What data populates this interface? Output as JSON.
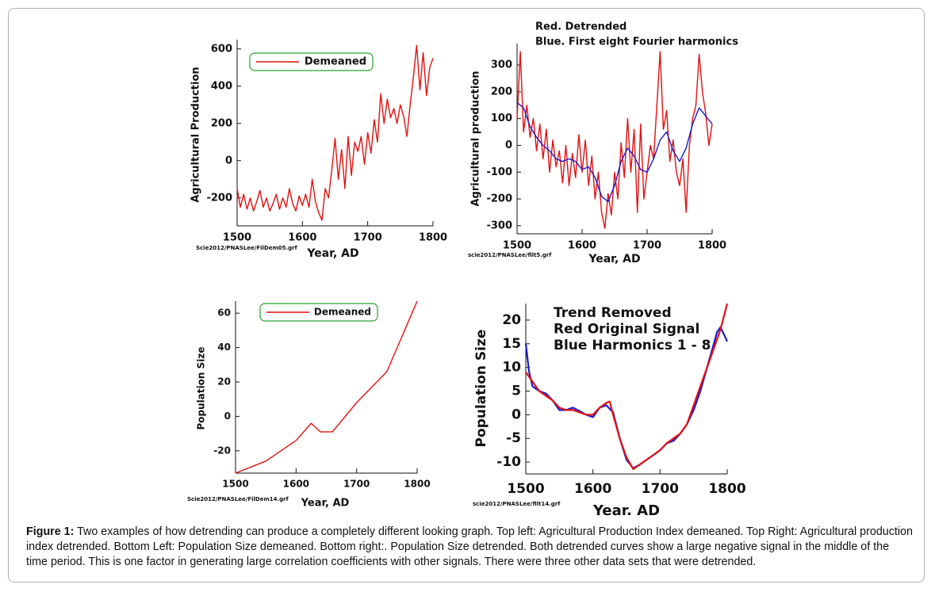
{
  "chart_data": [
    {
      "type": "line",
      "ylabel": "Agricultural Production",
      "xlabel": "Year, AD",
      "source": "Scie2012/PNASLee/FilDem05.grf",
      "xlim": [
        1500,
        1800
      ],
      "xticks": [
        1500,
        1600,
        1700,
        1800
      ],
      "ylim": [
        -350,
        650
      ],
      "yticks": [
        -200,
        0,
        200,
        400,
        600
      ],
      "legend": "top-left",
      "series": [
        {
          "name": "Demeaned",
          "color": "#e41010",
          "x": [
            1500,
            1505,
            1510,
            1515,
            1520,
            1525,
            1530,
            1535,
            1540,
            1545,
            1550,
            1555,
            1560,
            1565,
            1570,
            1575,
            1580,
            1585,
            1590,
            1595,
            1600,
            1605,
            1610,
            1615,
            1620,
            1625,
            1630,
            1635,
            1640,
            1645,
            1650,
            1655,
            1660,
            1665,
            1670,
            1675,
            1680,
            1685,
            1690,
            1695,
            1700,
            1705,
            1710,
            1715,
            1720,
            1725,
            1730,
            1735,
            1740,
            1745,
            1750,
            1755,
            1760,
            1765,
            1770,
            1775,
            1780,
            1785,
            1790,
            1795,
            1800
          ],
          "values": [
            -150,
            -250,
            -180,
            -260,
            -200,
            -270,
            -220,
            -160,
            -250,
            -200,
            -270,
            -230,
            -180,
            -260,
            -200,
            -250,
            -150,
            -230,
            -270,
            -190,
            -240,
            -180,
            -250,
            -100,
            -220,
            -280,
            -320,
            -150,
            -200,
            -50,
            120,
            -100,
            60,
            -150,
            130,
            -80,
            100,
            50,
            130,
            -20,
            150,
            40,
            220,
            100,
            360,
            200,
            330,
            230,
            280,
            200,
            300,
            240,
            130,
            300,
            450,
            620,
            380,
            580,
            350,
            500,
            550
          ]
        }
      ]
    },
    {
      "type": "line",
      "ylabel": "Agricultural production",
      "xlabel": "Year, AD",
      "source": "scie2012/PNASLee/filt5.grf",
      "annotations": [
        "Red. Detrended",
        "Blue. First eight Fourier harmonics"
      ],
      "xlim": [
        1500,
        1800
      ],
      "xticks": [
        1500,
        1600,
        1700,
        1800
      ],
      "ylim": [
        -330,
        380
      ],
      "yticks": [
        -300,
        -200,
        -100,
        0,
        100,
        200,
        300
      ],
      "series": [
        {
          "color": "#e41010",
          "x": [
            1500,
            1505,
            1510,
            1515,
            1520,
            1525,
            1530,
            1535,
            1540,
            1545,
            1550,
            1555,
            1560,
            1565,
            1570,
            1575,
            1580,
            1585,
            1590,
            1595,
            1600,
            1605,
            1610,
            1615,
            1620,
            1625,
            1630,
            1635,
            1640,
            1645,
            1650,
            1655,
            1660,
            1665,
            1670,
            1675,
            1680,
            1685,
            1690,
            1695,
            1700,
            1705,
            1710,
            1715,
            1720,
            1725,
            1730,
            1735,
            1740,
            1745,
            1750,
            1755,
            1760,
            1765,
            1770,
            1775,
            1780,
            1785,
            1790,
            1795,
            1800
          ],
          "values": [
            100,
            350,
            50,
            150,
            30,
            100,
            -20,
            80,
            -50,
            60,
            -100,
            20,
            -80,
            -20,
            -140,
            0,
            -150,
            -30,
            -120,
            40,
            -100,
            20,
            -150,
            -40,
            -200,
            -100,
            -250,
            -310,
            -180,
            -260,
            -100,
            -200,
            10,
            -120,
            100,
            -100,
            60,
            -250,
            80,
            -200,
            -100,
            0,
            -50,
            150,
            350,
            60,
            130,
            -60,
            20,
            -100,
            -150,
            -50,
            -250,
            0,
            100,
            150,
            340,
            200,
            120,
            0,
            80
          ]
        },
        {
          "color": "#1a1ad0",
          "x": [
            1500,
            1510,
            1520,
            1530,
            1540,
            1550,
            1560,
            1570,
            1580,
            1590,
            1600,
            1610,
            1620,
            1630,
            1640,
            1650,
            1660,
            1670,
            1680,
            1690,
            1700,
            1710,
            1720,
            1730,
            1740,
            1750,
            1760,
            1770,
            1780,
            1790,
            1800
          ],
          "values": [
            160,
            140,
            70,
            30,
            0,
            -20,
            -50,
            -60,
            -50,
            -60,
            -90,
            -80,
            -120,
            -190,
            -210,
            -150,
            -60,
            -10,
            -40,
            -90,
            -100,
            -50,
            20,
            50,
            -20,
            -60,
            -10,
            80,
            140,
            110,
            80
          ]
        }
      ]
    },
    {
      "type": "line",
      "ylabel": "Population Size",
      "xlabel": "Year, AD",
      "source": "Scie2012/PNASLee/FilDem14.grf",
      "xlim": [
        1500,
        1800
      ],
      "xticks": [
        1500,
        1600,
        1700,
        1800
      ],
      "ylim": [
        -33,
        67
      ],
      "yticks": [
        -20,
        0,
        20,
        40,
        60
      ],
      "legend": "top-left",
      "series": [
        {
          "name": "Demeaned",
          "color": "#e41010",
          "x": [
            1500,
            1550,
            1600,
            1625,
            1640,
            1660,
            1700,
            1750,
            1800
          ],
          "values": [
            -33,
            -26,
            -14,
            -4,
            -9,
            -9,
            8,
            26,
            67
          ]
        }
      ]
    },
    {
      "type": "line",
      "ylabel": "Population Size",
      "xlabel": "Year. AD",
      "source": "scie2012/PNASLee/filt14.grf",
      "annotations": [
        "Trend Removed",
        "Red  Original Signal",
        "Blue Harmonics 1 - 8"
      ],
      "xlim": [
        1500,
        1800
      ],
      "xticks": [
        1500,
        1600,
        1700,
        1800
      ],
      "ylim": [
        -12.5,
        23.5
      ],
      "yticks": [
        -10,
        -5,
        0,
        5,
        10,
        15,
        20
      ],
      "series": [
        {
          "color": "#1a1ad0",
          "x": [
            1500,
            1505,
            1510,
            1520,
            1530,
            1540,
            1550,
            1560,
            1570,
            1580,
            1590,
            1600,
            1610,
            1620,
            1630,
            1640,
            1650,
            1660,
            1670,
            1680,
            1690,
            1700,
            1710,
            1720,
            1730,
            1740,
            1750,
            1760,
            1770,
            1780,
            1785,
            1790,
            1795,
            1800
          ],
          "values": [
            15,
            9,
            6,
            5,
            4.5,
            3,
            1,
            1,
            1.5,
            0.8,
            0,
            -0.5,
            1.5,
            2,
            0.5,
            -5,
            -9.5,
            -11.3,
            -10.5,
            -9.5,
            -8.5,
            -7.5,
            -6,
            -5.5,
            -4,
            -2,
            1,
            5,
            10,
            15,
            17.5,
            18.5,
            17,
            15.5
          ]
        },
        {
          "color": "#e41010",
          "x": [
            1500,
            1510,
            1520,
            1530,
            1540,
            1550,
            1560,
            1570,
            1580,
            1590,
            1600,
            1610,
            1620,
            1625,
            1630,
            1640,
            1650,
            1660,
            1670,
            1680,
            1690,
            1700,
            1710,
            1720,
            1730,
            1740,
            1750,
            1760,
            1770,
            1780,
            1790,
            1800
          ],
          "values": [
            9,
            7,
            5,
            4,
            3,
            1.5,
            1,
            1,
            0.5,
            0,
            0,
            1.5,
            2.5,
            2.8,
            0,
            -5,
            -9,
            -11.5,
            -10.5,
            -9.5,
            -8.5,
            -7.5,
            -6,
            -5,
            -4,
            -2,
            2,
            6,
            10,
            14,
            18,
            23.5
          ]
        }
      ]
    }
  ],
  "caption": {
    "label": "Figure 1:",
    "text": " Two examples of how detrending can produce a completely different looking graph. Top left: Agricultural Production Index demeaned. Top Right: Agricultural production index detrended. Bottom Left: Population Size demeaned. Bottom right:. Population Size detrended. Both detrended curves show a large negative signal in the middle of the time period. This is one factor in generating large correlation coefficients with other signals. There were three other data sets that were detrended."
  }
}
